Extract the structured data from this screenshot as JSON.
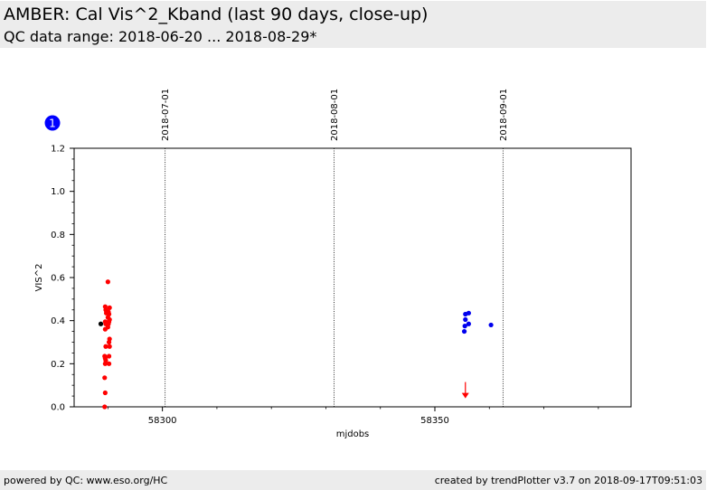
{
  "header": {
    "title": "AMBER: Cal Vis^2_Kband (last 90 days, close-up)",
    "subtitle": "QC data range: 2018-06-20 ... 2018-08-29*"
  },
  "footer": {
    "left": "powered by QC: www.eso.org/HC",
    "right": "created by trendPlotter v3.7 on 2018-09-17T09:51:03"
  },
  "plot_badge": "1",
  "chart_data": {
    "type": "scatter",
    "xlabel": "mjdobs",
    "ylabel": "VIS^2",
    "xlim": [
      58283.8,
      58386.0
    ],
    "ylim": [
      0,
      1.2
    ],
    "xticks": [
      {
        "value": 58300,
        "label": "58300"
      },
      {
        "value": 58350,
        "label": "58350"
      }
    ],
    "yticks": [
      {
        "value": 0.0,
        "label": "0.0"
      },
      {
        "value": 0.2,
        "label": "0.2"
      },
      {
        "value": 0.4,
        "label": "0.4"
      },
      {
        "value": 0.6,
        "label": "0.6"
      },
      {
        "value": 0.8,
        "label": "0.8"
      },
      {
        "value": 1.0,
        "label": "1.0"
      },
      {
        "value": 1.2,
        "label": "1.2"
      }
    ],
    "month_markers": [
      {
        "mjd": 58300.5,
        "label": "2018-07-01"
      },
      {
        "mjd": 58331.5,
        "label": "2018-08-01"
      },
      {
        "mjd": 58362.5,
        "label": "2018-09-01"
      }
    ],
    "colors": {
      "black": "#000000",
      "red": "#ff0000",
      "blue": "#0000ee",
      "badge": "#0000ff"
    },
    "series": [
      {
        "color": "black",
        "points": [
          [
            58288.7,
            0.385
          ]
        ]
      },
      {
        "color": "red",
        "points": [
          [
            58289.4,
            0.0
          ],
          [
            58289.5,
            0.065
          ],
          [
            58289.4,
            0.135
          ],
          [
            58289.5,
            0.2
          ],
          [
            58289.6,
            0.215
          ],
          [
            58289.5,
            0.225
          ],
          [
            58289.4,
            0.235
          ],
          [
            58289.6,
            0.28
          ],
          [
            58289.5,
            0.36
          ],
          [
            58289.6,
            0.385
          ],
          [
            58289.5,
            0.395
          ],
          [
            58289.7,
            0.435
          ],
          [
            58289.6,
            0.45
          ],
          [
            58289.5,
            0.465
          ],
          [
            58290.0,
            0.58
          ],
          [
            58290.2,
            0.2
          ],
          [
            58290.2,
            0.235
          ],
          [
            58290.3,
            0.28
          ],
          [
            58290.2,
            0.3
          ],
          [
            58290.3,
            0.315
          ],
          [
            58290.0,
            0.37
          ],
          [
            58290.1,
            0.385
          ],
          [
            58290.2,
            0.395
          ],
          [
            58290.3,
            0.405
          ],
          [
            58290.0,
            0.415
          ],
          [
            58290.2,
            0.43
          ],
          [
            58290.1,
            0.44
          ],
          [
            58290.3,
            0.46
          ]
        ]
      },
      {
        "color": "blue",
        "points": [
          [
            58355.4,
            0.35
          ],
          [
            58355.5,
            0.375
          ],
          [
            58355.6,
            0.405
          ],
          [
            58355.6,
            0.43
          ],
          [
            58356.2,
            0.385
          ],
          [
            58356.2,
            0.435
          ],
          [
            58360.3,
            0.38
          ]
        ]
      }
    ],
    "upper_limits": [
      {
        "x": 58355.6,
        "y": 0.115,
        "color": "red"
      }
    ]
  }
}
